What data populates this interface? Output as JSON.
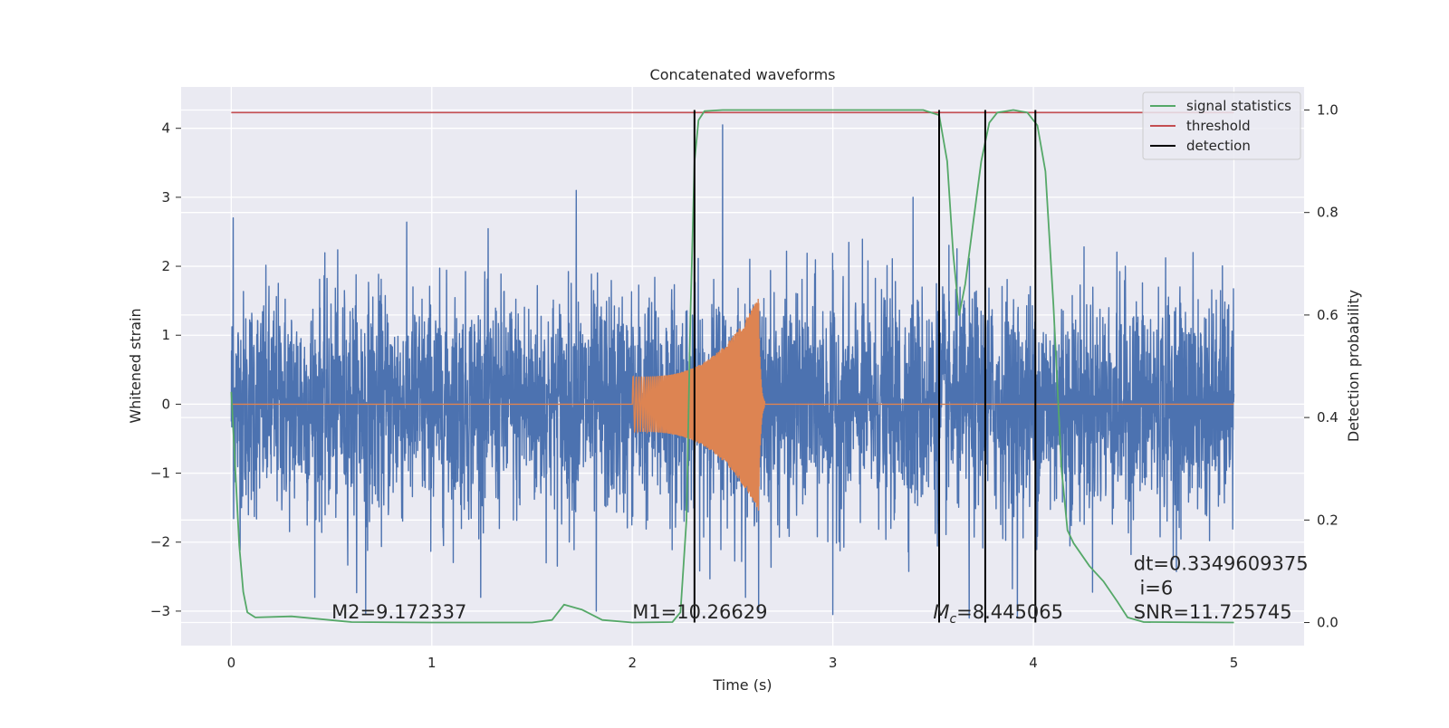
{
  "chart_data": {
    "type": "line",
    "title": "Concatenated waveforms",
    "xlabel": "Time (s)",
    "ylabel": "Whitened strain",
    "ylabel_right": "Detection probability",
    "xlim": [
      -0.25,
      5.35
    ],
    "ylim": [
      -3.5,
      4.6
    ],
    "ylim_right": [
      -0.045,
      1.045
    ],
    "grid": true,
    "legend_position": "top-right",
    "x_ticks": [
      "0",
      "1",
      "2",
      "3",
      "4",
      "5"
    ],
    "y_ticks": [
      "−3",
      "−2",
      "−1",
      "0",
      "1",
      "2",
      "3",
      "4"
    ],
    "y_ticks_right": [
      "0.0",
      "0.2",
      "0.4",
      "0.6",
      "0.8",
      "1.0"
    ],
    "legend": [
      {
        "label": "signal statistics",
        "color": "#55a868"
      },
      {
        "label": "threshold",
        "color": "#c44e52"
      },
      {
        "label": "detection",
        "color": "#000000"
      }
    ],
    "strain": {
      "color": "#4c72b0",
      "x_range": [
        0,
        5
      ],
      "typical_amplitude": 1.3,
      "peak_values": [
        {
          "x": 0.01,
          "y": 2.7
        },
        {
          "x": 0.67,
          "y": -3.05
        },
        {
          "x": 1.72,
          "y": 3.1
        },
        {
          "x": 1.82,
          "y": -3.0
        },
        {
          "x": 2.45,
          "y": 4.05
        },
        {
          "x": 2.63,
          "y": -3.0
        },
        {
          "x": 3.0,
          "y": -3.05
        },
        {
          "x": 3.4,
          "y": 3.0
        },
        {
          "x": 3.68,
          "y": -3.1
        },
        {
          "x": 3.92,
          "y": -3.1
        }
      ]
    },
    "template": {
      "color": "#dd8452",
      "x_range": [
        2.0,
        2.66
      ],
      "start_amplitude": 0.4,
      "peak_amplitude": 1.55,
      "peak_time": 2.63
    },
    "threshold": {
      "value": 0.995,
      "x_range": [
        0,
        5
      ]
    },
    "signal_statistics": {
      "color": "#55a868",
      "points": [
        [
          0.0,
          0.45
        ],
        [
          0.02,
          0.3
        ],
        [
          0.04,
          0.15
        ],
        [
          0.06,
          0.06
        ],
        [
          0.08,
          0.02
        ],
        [
          0.12,
          0.01
        ],
        [
          0.3,
          0.012
        ],
        [
          0.6,
          0.001
        ],
        [
          1.0,
          0.0
        ],
        [
          1.5,
          0.0
        ],
        [
          1.6,
          0.005
        ],
        [
          1.66,
          0.035
        ],
        [
          1.75,
          0.025
        ],
        [
          1.85,
          0.005
        ],
        [
          2.0,
          0.0
        ],
        [
          2.2,
          0.001
        ],
        [
          2.24,
          0.02
        ],
        [
          2.27,
          0.2
        ],
        [
          2.29,
          0.6
        ],
        [
          2.31,
          0.9
        ],
        [
          2.33,
          0.98
        ],
        [
          2.36,
          0.998
        ],
        [
          2.45,
          1.0
        ],
        [
          3.45,
          1.0
        ],
        [
          3.53,
          0.99
        ],
        [
          3.57,
          0.9
        ],
        [
          3.6,
          0.72
        ],
        [
          3.63,
          0.6
        ],
        [
          3.66,
          0.66
        ],
        [
          3.7,
          0.78
        ],
        [
          3.74,
          0.9
        ],
        [
          3.78,
          0.975
        ],
        [
          3.82,
          0.995
        ],
        [
          3.9,
          1.0
        ],
        [
          3.97,
          0.995
        ],
        [
          4.02,
          0.97
        ],
        [
          4.06,
          0.88
        ],
        [
          4.1,
          0.62
        ],
        [
          4.14,
          0.3
        ],
        [
          4.17,
          0.18
        ],
        [
          4.2,
          0.155
        ],
        [
          4.28,
          0.11
        ],
        [
          4.35,
          0.08
        ],
        [
          4.42,
          0.04
        ],
        [
          4.47,
          0.01
        ],
        [
          4.55,
          0.001
        ],
        [
          5.0,
          0.0
        ]
      ]
    },
    "detections": [
      2.31,
      3.53,
      3.76,
      4.01
    ],
    "annotations": [
      {
        "text": "M2=9.172337",
        "x": 0.5,
        "y": -3.0
      },
      {
        "text": "M1=10.26629",
        "x": 2.0,
        "y": -3.0
      },
      {
        "text": "=8.445065",
        "prefix_italic": "M",
        "prefix_sub": "c",
        "x": 3.5,
        "y": -3.0
      },
      {
        "text": "dt=0.3349609375",
        "x": 4.5,
        "y": -2.3
      },
      {
        "text": " i=6",
        "x": 4.5,
        "y": -2.65
      },
      {
        "text": "SNR=11.725745",
        "x": 4.5,
        "y": -3.0
      }
    ]
  }
}
